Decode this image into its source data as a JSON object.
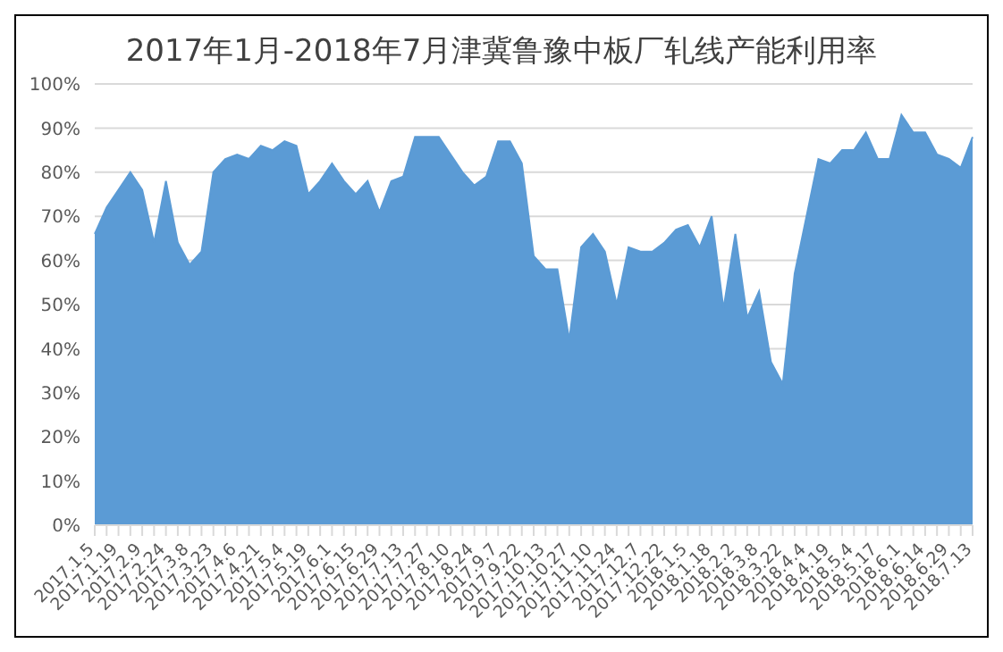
{
  "chart_data": {
    "type": "area",
    "title": "2017年1月-2018年7月津冀鲁豫中板厂轧线产能利用率",
    "categories": [
      "2017.1.5",
      null,
      "2017.1.19",
      null,
      "2017.2.9",
      null,
      "2017.2.24",
      null,
      "2017.3.8",
      null,
      "2017.3.23",
      null,
      "2017.4.6",
      null,
      "2017.4.21",
      null,
      "2017.5.4",
      null,
      "2017.5.19",
      null,
      "2017.6.1",
      null,
      "2017.6.15",
      null,
      "2017.6.29",
      null,
      "2017.7.13",
      null,
      "2017.7.27",
      null,
      "2017.8.10",
      null,
      "2017.8.24",
      null,
      "2017.9.7",
      null,
      "2017.9.22",
      null,
      "2017.10.13",
      null,
      "2017.10.27",
      null,
      "2017.11.10",
      null,
      "2017.11.24",
      null,
      "2017.12.7",
      null,
      "2017.12.22",
      null,
      "2018.1.5",
      null,
      "2018.1.18",
      null,
      "2018.2.2",
      null,
      "2018.3.8",
      null,
      "2018.3.22",
      null,
      "2018.4.4",
      null,
      "2018.4.19",
      null,
      "2018.5.4",
      null,
      "2018.5.17",
      null,
      "2018.6.1",
      null,
      "2018.6.14",
      null,
      "2018.6.29",
      null,
      "2018.7.13"
    ],
    "values": [
      66,
      72,
      76,
      80,
      76,
      64,
      78,
      64,
      59,
      62,
      80,
      83,
      84,
      83,
      86,
      85,
      87,
      86,
      75,
      78,
      82,
      78,
      75,
      78,
      71,
      78,
      79,
      88,
      88,
      88,
      84,
      80,
      77,
      79,
      87,
      87,
      82,
      61,
      58,
      58,
      42,
      63,
      66,
      62,
      50,
      63,
      62,
      62,
      64,
      67,
      68,
      63,
      70,
      49,
      66,
      47,
      53,
      37,
      32,
      57,
      70,
      83,
      82,
      85,
      85,
      89,
      83,
      83,
      93,
      89,
      89,
      84,
      83,
      81,
      88
    ],
    "color": "#5b9bd5",
    "ylim": [
      0,
      100
    ],
    "yticks": [
      {
        "value": 0,
        "label": "0%"
      },
      {
        "value": 10,
        "label": "10%"
      },
      {
        "value": 20,
        "label": "20%"
      },
      {
        "value": 30,
        "label": "30%"
      },
      {
        "value": 40,
        "label": "40%"
      },
      {
        "value": 50,
        "label": "50%"
      },
      {
        "value": 60,
        "label": "60%"
      },
      {
        "value": 70,
        "label": "70%"
      },
      {
        "value": 80,
        "label": "80%"
      },
      {
        "value": 90,
        "label": "90%"
      },
      {
        "value": 100,
        "label": "100%"
      }
    ],
    "grid": "y"
  }
}
